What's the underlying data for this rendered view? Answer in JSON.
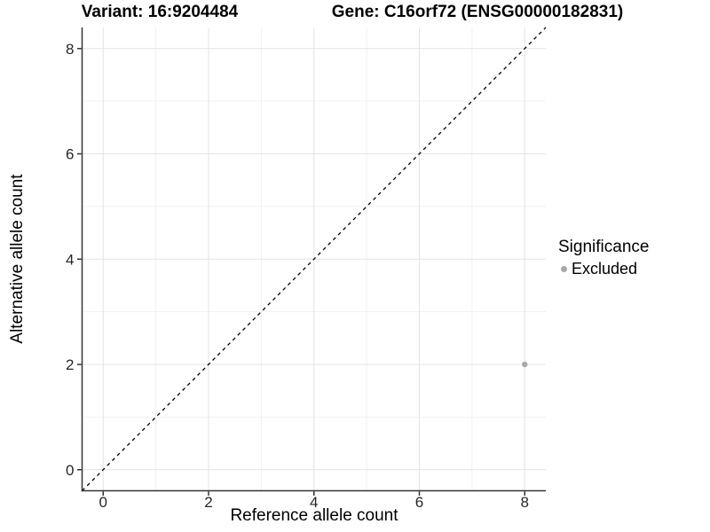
{
  "header": {
    "variant_title": "Variant: 16:9204484",
    "gene_title": "Gene: C16orf72 (ENSG00000182831)"
  },
  "axes": {
    "x_title": "Reference allele count",
    "y_title": "Alternative allele count",
    "x_tick_labels": [
      "0",
      "2",
      "4",
      "6",
      "8"
    ],
    "y_tick_labels": [
      "0",
      "2",
      "4",
      "6",
      "8"
    ]
  },
  "legend": {
    "title": "Significance",
    "position": "right",
    "entries": [
      {
        "label": "Excluded",
        "color": "#a8a8a8"
      }
    ]
  },
  "chart_data": {
    "type": "scatter",
    "title_left": "Variant: 16:9204484",
    "title_right": "Gene: C16orf72 (ENSG00000182831)",
    "xlabel": "Reference allele count",
    "ylabel": "Alternative allele count",
    "xlim": [
      -0.4,
      8.4
    ],
    "ylim": [
      -0.4,
      8.4
    ],
    "xticks": [
      0,
      2,
      4,
      6,
      8
    ],
    "yticks": [
      0,
      2,
      4,
      6,
      8
    ],
    "xticks_minor": [
      1,
      3,
      5,
      7
    ],
    "yticks_minor": [
      1,
      3,
      5,
      7
    ],
    "grid": true,
    "legend_position": "right",
    "abline": {
      "slope": 1,
      "intercept": 0,
      "style": "dashed",
      "color": "#000000"
    },
    "series": [
      {
        "name": "Excluded",
        "color": "#a8a8a8",
        "points": [
          {
            "x": 8,
            "y": 2
          }
        ]
      }
    ],
    "colors": {
      "axis_line": "#333333",
      "tick_text": "#262626",
      "grid_major": "#e4e4e4",
      "grid_minor": "#f1f1f1",
      "background": "#ffffff"
    }
  }
}
